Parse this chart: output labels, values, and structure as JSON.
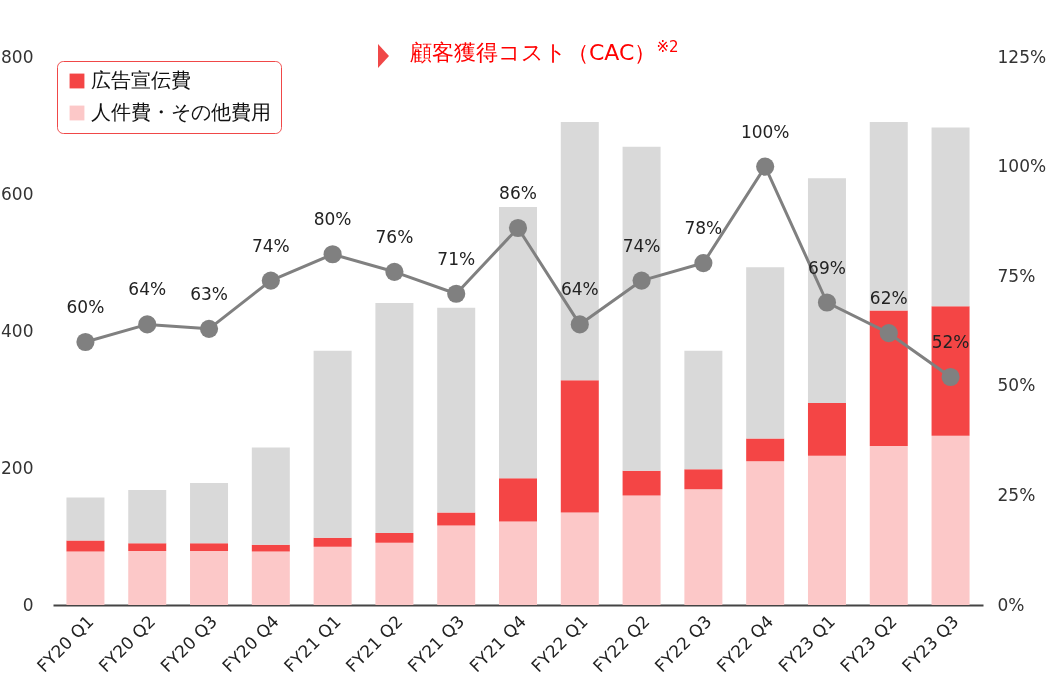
{
  "chart_data": {
    "type": "bar",
    "stacked": true,
    "categories": [
      "FY20 Q1",
      "FY20 Q2",
      "FY20 Q3",
      "FY20 Q4",
      "FY21 Q1",
      "FY21 Q2",
      "FY21 Q3",
      "FY21 Q4",
      "FY22 Q1",
      "FY22 Q2",
      "FY22 Q3",
      "FY22 Q4",
      "FY23 Q1",
      "FY23 Q2",
      "FY23 Q3"
    ],
    "series": [
      {
        "name": "人件費・その他費用",
        "color": "#fcc8c8",
        "values": [
          78,
          79,
          79,
          78,
          85,
          91,
          116,
          122,
          135,
          160,
          169,
          210,
          218,
          232,
          247
        ]
      },
      {
        "name": "広告宣伝費",
        "color": "#f44545",
        "values": [
          16,
          11,
          11,
          10,
          13,
          14,
          19,
          63,
          193,
          36,
          29,
          33,
          77,
          198,
          189
        ]
      },
      {
        "color": "#d9d9d9",
        "values": [
          63,
          78,
          88,
          142,
          273,
          336,
          299,
          396,
          377,
          473,
          173,
          250,
          328,
          275,
          261
        ]
      },
      {
        "type": "line",
        "axis": "y2",
        "color": "#808080",
        "marker": "circle",
        "values": [
          60,
          64,
          63,
          74,
          80,
          76,
          71,
          86,
          64,
          74,
          78,
          100,
          69,
          62,
          52
        ],
        "value_labels": [
          "60%",
          "64%",
          "63%",
          "74%",
          "80%",
          "76%",
          "71%",
          "86%",
          "64%",
          "74%",
          "78%",
          "100%",
          "69%",
          "62%",
          "52%"
        ]
      }
    ],
    "ylim": [
      0,
      800
    ],
    "yticks": [
      0,
      200,
      400,
      600,
      800
    ],
    "y2lim": [
      0,
      125
    ],
    "y2ticks": [
      {
        "value": 0,
        "label": "0%"
      },
      {
        "value": 25,
        "label": "25%"
      },
      {
        "value": 50,
        "label": "50%"
      },
      {
        "value": 75,
        "label": "75%"
      },
      {
        "value": 100,
        "label": "100%"
      },
      {
        "value": 125,
        "label": "125%"
      }
    ],
    "annotations": [
      "顧客獲得コスト（CAC）$^{※2}$"
    ],
    "legend": "top left",
    "grid": false
  }
}
